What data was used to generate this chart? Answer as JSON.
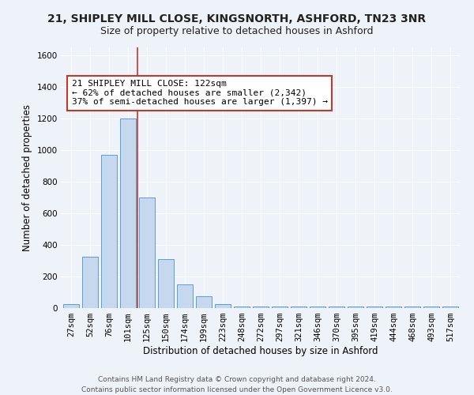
{
  "title": "21, SHIPLEY MILL CLOSE, KINGSNORTH, ASHFORD, TN23 3NR",
  "subtitle": "Size of property relative to detached houses in Ashford",
  "xlabel": "Distribution of detached houses by size in Ashford",
  "ylabel": "Number of detached properties",
  "bar_color": "#c5d8ed",
  "bar_edge_color": "#5b9bd5",
  "categories": [
    "27sqm",
    "52sqm",
    "76sqm",
    "101sqm",
    "125sqm",
    "150sqm",
    "174sqm",
    "199sqm",
    "223sqm",
    "248sqm",
    "272sqm",
    "297sqm",
    "321sqm",
    "346sqm",
    "370sqm",
    "395sqm",
    "419sqm",
    "444sqm",
    "468sqm",
    "493sqm",
    "517sqm"
  ],
  "values": [
    25,
    325,
    970,
    1200,
    700,
    310,
    150,
    75,
    25,
    10,
    10,
    10,
    10,
    10,
    10,
    10,
    10,
    10,
    10,
    10,
    10
  ],
  "ylim": [
    0,
    1650
  ],
  "yticks": [
    0,
    200,
    400,
    600,
    800,
    1000,
    1200,
    1400,
    1600
  ],
  "vline_x_index": 4,
  "vline_color": "#c0392b",
  "annotation_text": "21 SHIPLEY MILL CLOSE: 122sqm\n← 62% of detached houses are smaller (2,342)\n37% of semi-detached houses are larger (1,397) →",
  "annotation_box_color": "#ffffff",
  "annotation_box_edge": "#c0392b",
  "footer_line1": "Contains HM Land Registry data © Crown copyright and database right 2024.",
  "footer_line2": "Contains public sector information licensed under the Open Government Licence v3.0.",
  "background_color": "#eef2f9",
  "grid_color": "#ffffff",
  "title_fontsize": 10,
  "subtitle_fontsize": 9,
  "axis_label_fontsize": 8.5,
  "tick_fontsize": 7.5,
  "annotation_fontsize": 8,
  "footer_fontsize": 6.5
}
